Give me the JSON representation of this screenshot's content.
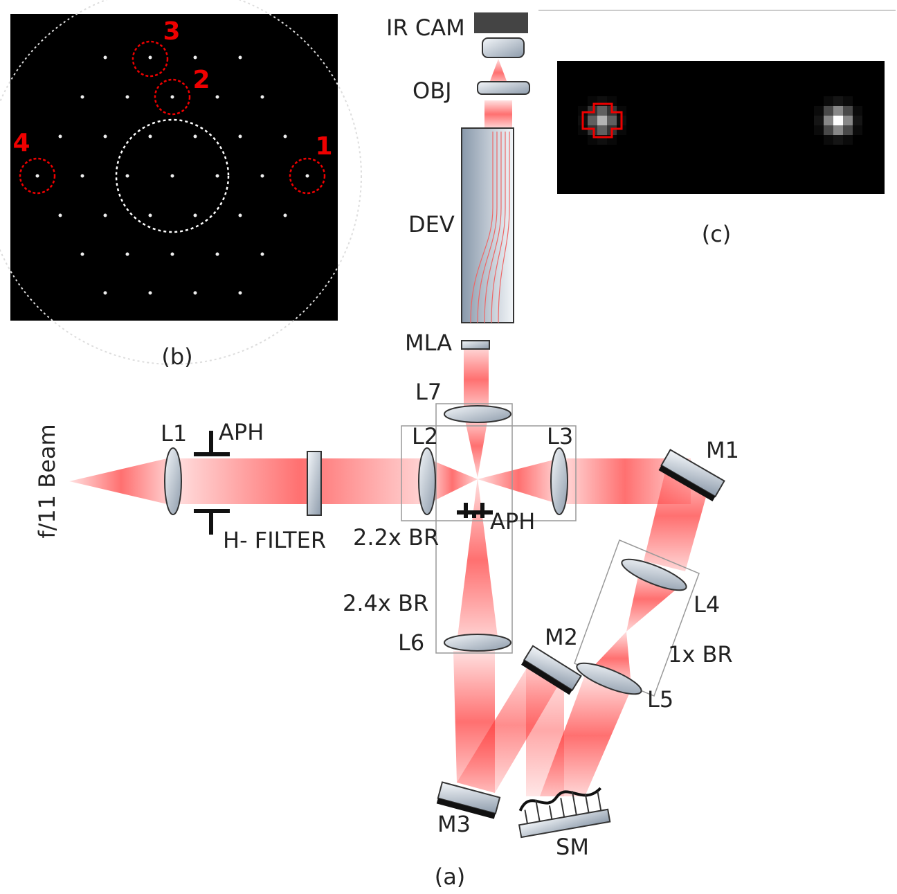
{
  "panel_a": {
    "caption": "(a)",
    "labels": {
      "ir_cam": "IR CAM",
      "obj": "OBJ",
      "dev": "DEV",
      "mla": "MLA",
      "l7": "L7",
      "l1": "L1",
      "aph_1": "APH",
      "l2": "L2",
      "l3": "L3",
      "m1": "M1",
      "beam": "f/11 Beam",
      "h_filter": "H- FILTER",
      "br_22": "2.2x BR",
      "aph_2": "APH",
      "br_24": "2.4x BR",
      "l6": "L6",
      "m2": "M2",
      "l4": "L4",
      "br_1": "1x BR",
      "l5": "L5",
      "m3": "M3",
      "sm": "SM"
    }
  },
  "panel_b": {
    "caption": "(b)",
    "markers": [
      "1",
      "2",
      "3",
      "4"
    ]
  },
  "panel_c": {
    "caption": "(c)"
  }
}
